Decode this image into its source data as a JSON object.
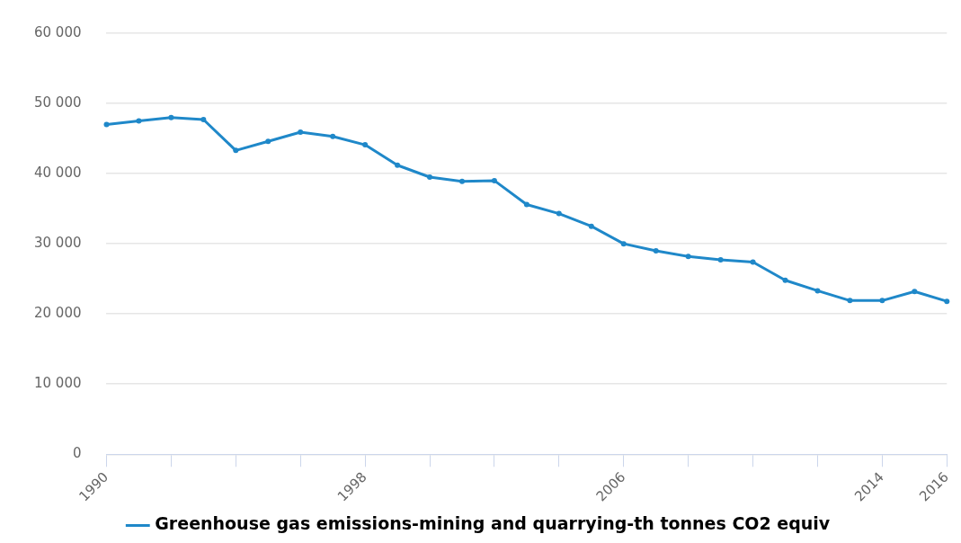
{
  "chart_data": {
    "type": "line",
    "categories": [
      "1990",
      null,
      null,
      null,
      null,
      null,
      null,
      null,
      "1998",
      null,
      null,
      null,
      null,
      null,
      null,
      null,
      "2006",
      null,
      null,
      null,
      null,
      null,
      null,
      null,
      "2014",
      null,
      "2016"
    ],
    "series": [
      {
        "name": "Greenhouse gas emissions-mining and quarrying-th tonnes CO2 equiv",
        "color": "#1f88c9",
        "values": [
          47000,
          47500,
          48000,
          47700,
          43300,
          44600,
          45900,
          45300,
          44100,
          41200,
          39500,
          38900,
          39000,
          35600,
          34300,
          32500,
          30000,
          29000,
          28200,
          27700,
          27400,
          24800,
          23300,
          21900,
          21900,
          23200,
          21800
        ]
      }
    ],
    "ylim": [
      0,
      60000
    ],
    "yticks": [
      {
        "value": 0,
        "label": "0"
      },
      {
        "value": 10000,
        "label": "10 000"
      },
      {
        "value": 20000,
        "label": "20 000"
      },
      {
        "value": 30000,
        "label": "30 000"
      },
      {
        "value": 40000,
        "label": "40 000"
      },
      {
        "value": 50000,
        "label": "50 000"
      },
      {
        "value": 60000,
        "label": "60 000"
      }
    ],
    "grid": "y",
    "legend": "bottom",
    "marker": "circle",
    "line_style": "solid"
  }
}
